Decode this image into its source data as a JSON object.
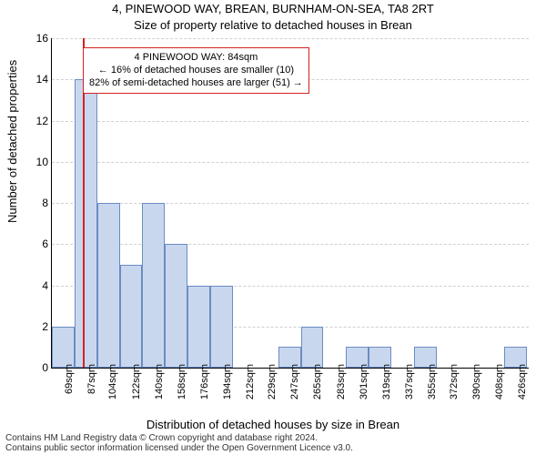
{
  "chart": {
    "type": "histogram",
    "title_line1": "4, PINEWOOD WAY, BREAN, BURNHAM-ON-SEA, TA8 2RT",
    "title_line2": "Size of property relative to detached houses in Brean",
    "title_fontsize": 13,
    "ylabel": "Number of detached properties",
    "xlabel": "Distribution of detached houses by size in Brean",
    "label_fontsize": 13,
    "background_color": "#ffffff",
    "grid_color": "#d0d0d0",
    "bar_fill": "#c9d7ee",
    "bar_stroke": "#6a8cc4",
    "ref_line_color": "#d62020",
    "ref_x": 84,
    "ylim": [
      0,
      16
    ],
    "ytick_step": 2,
    "yticks": [
      0,
      2,
      4,
      6,
      8,
      10,
      12,
      14,
      16
    ],
    "bin_start": 60,
    "bin_width": 17.8,
    "values": [
      2,
      14,
      8,
      5,
      8,
      6,
      4,
      4,
      0,
      0,
      1,
      2,
      0,
      1,
      1,
      0,
      1,
      0,
      0,
      0,
      1
    ],
    "xtick_labels": [
      "69sqm",
      "87sqm",
      "104sqm",
      "122sqm",
      "140sqm",
      "158sqm",
      "176sqm",
      "194sqm",
      "212sqm",
      "229sqm",
      "247sqm",
      "265sqm",
      "283sqm",
      "301sqm",
      "319sqm",
      "337sqm",
      "355sqm",
      "372sqm",
      "390sqm",
      "408sqm",
      "426sqm"
    ],
    "xtick_positions": [
      69,
      87,
      104,
      122,
      140,
      158,
      176,
      194,
      212,
      229,
      247,
      265,
      283,
      301,
      319,
      337,
      355,
      372,
      390,
      408,
      426
    ],
    "x_range": [
      60,
      435
    ],
    "annotation": {
      "line1": "4 PINEWOOD WAY: 84sqm",
      "line2": "← 16% of detached houses are smaller (10)",
      "line3": "82% of semi-detached houses are larger (51) →"
    },
    "caption_line1": "Contains HM Land Registry data © Crown copyright and database right 2024.",
    "caption_line2": "Contains public sector information licensed under the Open Government Licence v3.0."
  }
}
